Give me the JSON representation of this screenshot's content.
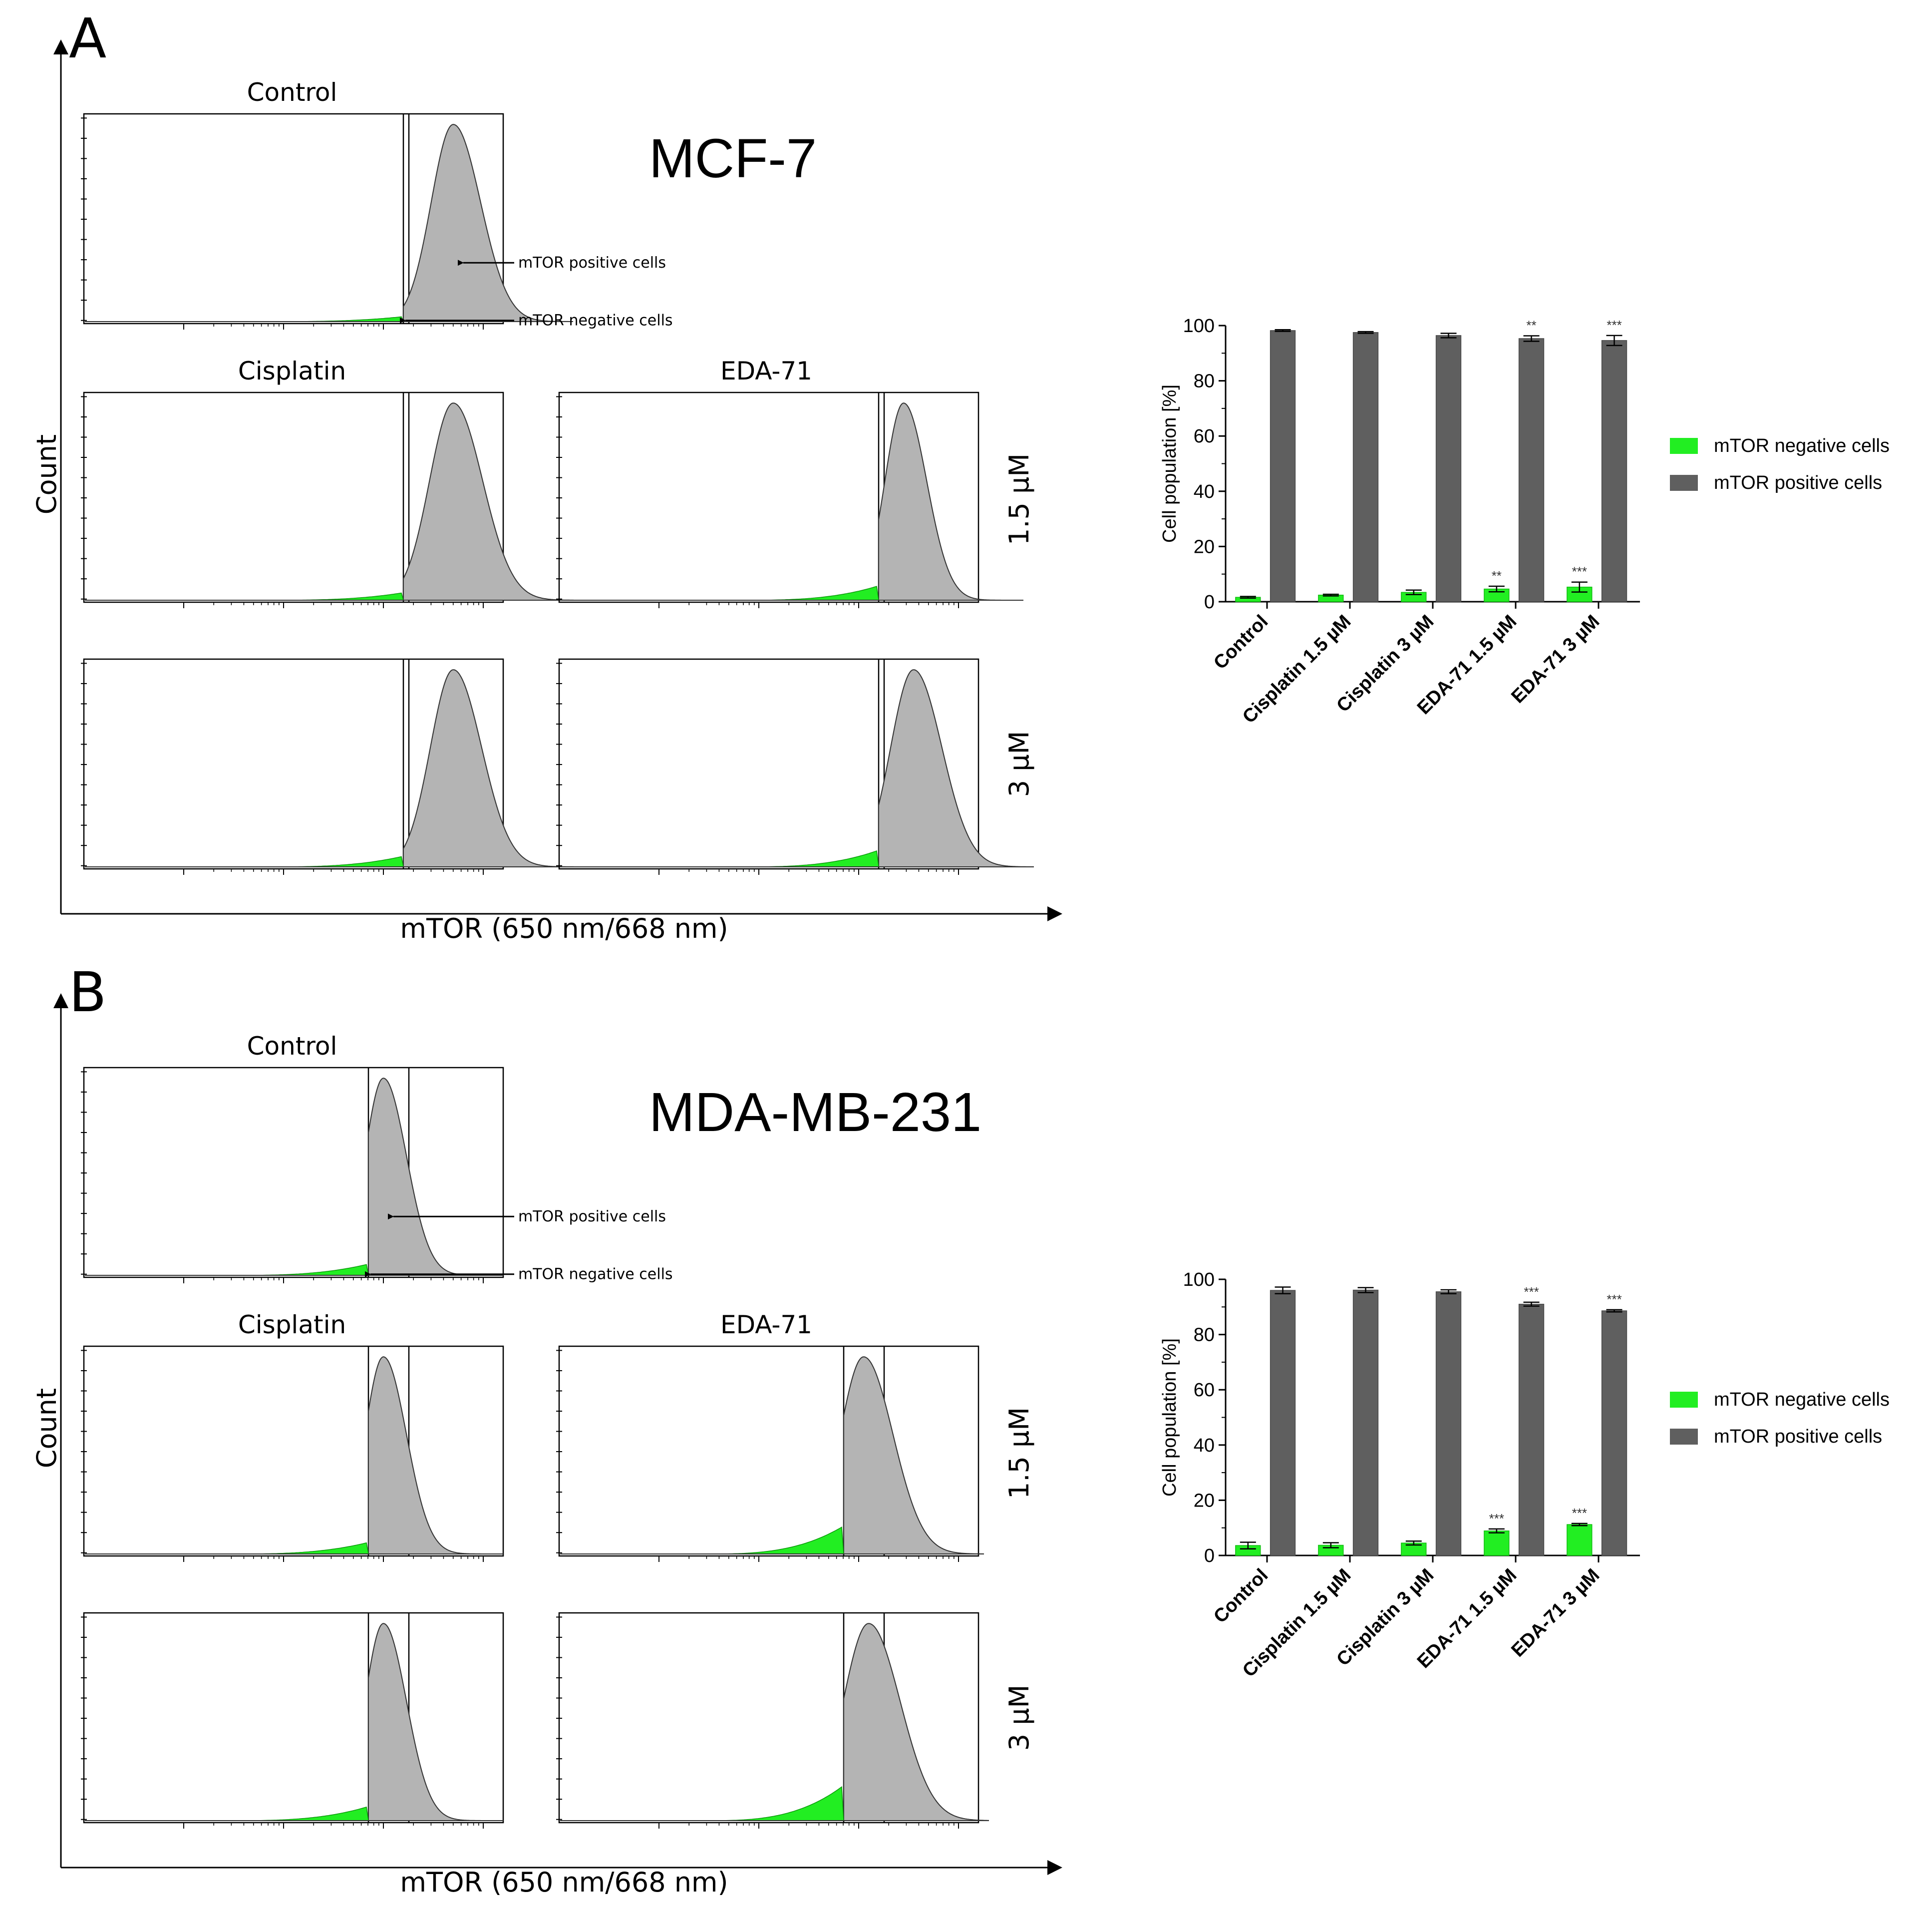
{
  "figure": {
    "panels": [
      {
        "label": "A",
        "cell_line": "MCF-7",
        "x_axis_label": "mTOR (650 nm/668 nm)",
        "y_axis_label": "Count",
        "col_titles": [
          "Control",
          "Cisplatin",
          "EDA-71"
        ],
        "row_labels": [
          "1.5 µM",
          "3 µM"
        ],
        "annotations": [
          "mTOR positive cells",
          "mTOR negative cells"
        ]
      },
      {
        "label": "B",
        "cell_line": "MDA-MB-231",
        "x_axis_label": "mTOR (650 nm/668 nm)",
        "y_axis_label": "Count",
        "col_titles": [
          "Control",
          "Cisplatin",
          "EDA-71"
        ],
        "row_labels": [
          "1.5 µM",
          "3 µM"
        ],
        "annotations": [
          "mTOR positive cells",
          "mTOR negative cells"
        ]
      }
    ]
  },
  "colors": {
    "negative": "#22ee22",
    "positive_fill": "#b4b4b4",
    "positive_bar": "#5f5f5f",
    "axis": "#000000"
  },
  "chart_data": [
    {
      "type": "histogram",
      "panel": "A",
      "title": "Control",
      "cell_line": "MCF-7",
      "x_scale": "log",
      "x_decades": [
        0.01,
        1,
        100,
        10000,
        1000000
      ],
      "gate_log10": 1.2,
      "peak_log10": 1.7,
      "peak_width": 0.26,
      "neg_fraction": 1.6,
      "annotations": [
        "mTOR positive cells",
        "mTOR negative cells"
      ]
    },
    {
      "type": "histogram",
      "panel": "A",
      "title": "Cisplatin 1.5 µM",
      "gate_log10": 1.2,
      "peak_log10": 1.7,
      "peak_width": 0.28,
      "neg_fraction": 2.4
    },
    {
      "type": "histogram",
      "panel": "A",
      "title": "EDA-71 1.5 µM",
      "gate_log10": 1.2,
      "peak_log10": 1.45,
      "peak_width": 0.22,
      "neg_fraction": 4.6
    },
    {
      "type": "histogram",
      "panel": "A",
      "title": "Cisplatin 3 µM",
      "gate_log10": 1.2,
      "peak_log10": 1.7,
      "peak_width": 0.27,
      "neg_fraction": 3.4
    },
    {
      "type": "histogram",
      "panel": "A",
      "title": "EDA-71 3 µM",
      "gate_log10": 1.2,
      "peak_log10": 1.55,
      "peak_width": 0.27,
      "neg_fraction": 5.3
    },
    {
      "type": "histogram",
      "panel": "B",
      "title": "Control",
      "cell_line": "MDA-MB-231",
      "gate_log10": 0.85,
      "peak_log10": 1.0,
      "peak_width": 0.22,
      "neg_fraction": 3.6,
      "annotations": [
        "mTOR positive cells",
        "mTOR negative cells"
      ]
    },
    {
      "type": "histogram",
      "panel": "B",
      "title": "Cisplatin 1.5 µM",
      "gate_log10": 0.85,
      "peak_log10": 1.0,
      "peak_width": 0.22,
      "neg_fraction": 3.7
    },
    {
      "type": "histogram",
      "panel": "B",
      "title": "EDA-71 1.5 µM",
      "gate_log10": 0.85,
      "peak_log10": 1.05,
      "peak_width": 0.28,
      "neg_fraction": 8.9
    },
    {
      "type": "histogram",
      "panel": "B",
      "title": "Cisplatin 3 µM",
      "gate_log10": 0.85,
      "peak_log10": 1.0,
      "peak_width": 0.22,
      "neg_fraction": 4.5
    },
    {
      "type": "histogram",
      "panel": "B",
      "title": "EDA-71 3 µM",
      "gate_log10": 0.85,
      "peak_log10": 1.1,
      "peak_width": 0.3,
      "neg_fraction": 11.2
    },
    {
      "type": "bar",
      "panel": "A",
      "title": "MCF-7",
      "categories": [
        "Control",
        "Cisplatin 1.5 µM",
        "Cisplatin 3 µM",
        "EDA-71 1.5 µM",
        "EDA-71 3 µM"
      ],
      "series": [
        {
          "name": "mTOR negative cells",
          "values": [
            1.6,
            2.4,
            3.4,
            4.6,
            5.3
          ],
          "errors": [
            0.3,
            0.3,
            0.8,
            1.0,
            1.8
          ],
          "significance": [
            "",
            "",
            "",
            "**",
            "***"
          ]
        },
        {
          "name": "mTOR positive cells",
          "values": [
            98.2,
            97.5,
            96.4,
            95.3,
            94.6
          ],
          "errors": [
            0.3,
            0.3,
            0.8,
            1.0,
            1.8
          ],
          "significance": [
            "",
            "",
            "",
            "**",
            "***"
          ]
        }
      ],
      "ylabel": "Cell population [%]",
      "ylim": [
        0,
        100
      ],
      "yticks": [
        "0",
        "20",
        "40",
        "60",
        "80",
        "100"
      ],
      "legend": [
        "mTOR negative cells",
        "mTOR positive cells"
      ]
    },
    {
      "type": "bar",
      "panel": "B",
      "title": "MDA-MB-231",
      "categories": [
        "Control",
        "Cisplatin 1.5 µM",
        "Cisplatin 3 µM",
        "EDA-71 1.5 µM",
        "EDA-71 3 µM"
      ],
      "series": [
        {
          "name": "mTOR negative cells",
          "values": [
            3.6,
            3.7,
            4.5,
            8.9,
            11.2
          ],
          "errors": [
            1.2,
            0.9,
            0.7,
            0.7,
            0.4
          ],
          "significance": [
            "",
            "",
            "",
            "***",
            "***"
          ]
        },
        {
          "name": "mTOR positive cells",
          "values": [
            96.0,
            96.1,
            95.5,
            91.0,
            88.6
          ],
          "errors": [
            1.2,
            0.9,
            0.7,
            0.7,
            0.4
          ],
          "significance": [
            "",
            "",
            "",
            "***",
            "***"
          ]
        }
      ],
      "ylabel": "Cell population [%]",
      "ylim": [
        0,
        100
      ],
      "yticks": [
        "0",
        "20",
        "40",
        "60",
        "80",
        "100"
      ],
      "legend": [
        "mTOR negative cells",
        "mTOR positive cells"
      ]
    }
  ]
}
